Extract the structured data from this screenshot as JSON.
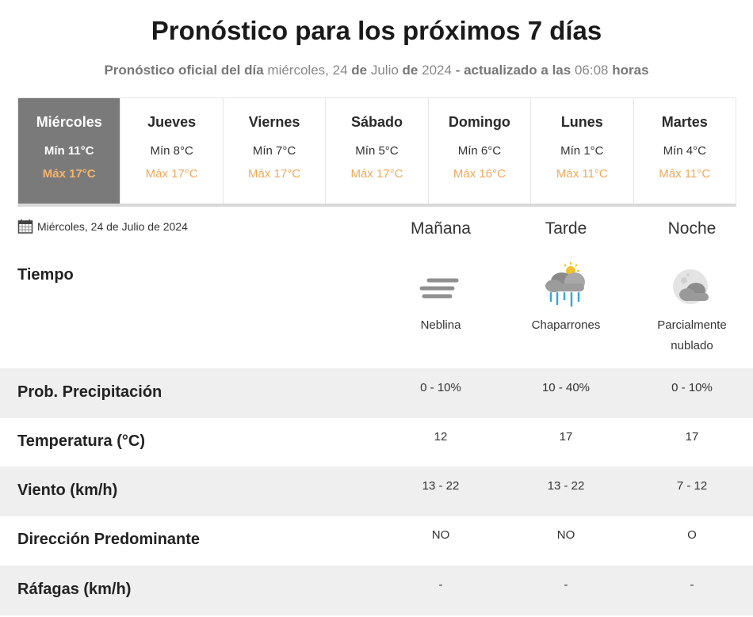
{
  "header": {
    "title": "Pronóstico para los próximos 7 días",
    "subtitle_prefix": "Pronóstico oficial del día",
    "subtitle_weekday": "miércoles,",
    "subtitle_day": "24",
    "subtitle_de1": "de",
    "subtitle_month": "Julio",
    "subtitle_de2": "de",
    "subtitle_year": "2024",
    "subtitle_sep": "-",
    "subtitle_updated": "actualizado a las",
    "subtitle_time": "06:08",
    "subtitle_hours": "horas"
  },
  "days": [
    {
      "name": "Miércoles",
      "min": "Mín 11°C",
      "max": "Máx 17°C",
      "active": true
    },
    {
      "name": "Jueves",
      "min": "Mín 8°C",
      "max": "Máx 17°C",
      "active": false
    },
    {
      "name": "Viernes",
      "min": "Mín 7°C",
      "max": "Máx 17°C",
      "active": false
    },
    {
      "name": "Sábado",
      "min": "Mín 5°C",
      "max": "Máx 17°C",
      "active": false
    },
    {
      "name": "Domingo",
      "min": "Mín 6°C",
      "max": "Máx 16°C",
      "active": false
    },
    {
      "name": "Lunes",
      "min": "Mín 1°C",
      "max": "Máx 11°C",
      "active": false
    },
    {
      "name": "Martes",
      "min": "Mín 4°C",
      "max": "Máx 11°C",
      "active": false
    }
  ],
  "detail": {
    "date": "Miércoles, 24 de Julio de 2024",
    "calendar_icon": "calendar-icon",
    "periods": [
      "Mañana",
      "Tarde",
      "Noche"
    ],
    "tiempo_label": "Tiempo",
    "conditions": [
      {
        "icon": "fog-icon",
        "line1": "Neblina",
        "line2": ""
      },
      {
        "icon": "showers-icon",
        "line1": "Chaparrones",
        "line2": ""
      },
      {
        "icon": "partly-cloudy-night-icon",
        "line1": "Parcialmente",
        "line2": "nublado"
      }
    ],
    "rows": [
      {
        "label": "Prob. Precipitación",
        "values": [
          "0 - 10%",
          "10 - 40%",
          "0 - 10%"
        ]
      },
      {
        "label": "Temperatura (°C)",
        "values": [
          "12",
          "17",
          "17"
        ]
      },
      {
        "label": "Viento (km/h)",
        "values": [
          "13 - 22",
          "13 - 22",
          "7 - 12"
        ]
      },
      {
        "label": "Dirección Predominante",
        "values": [
          "NO",
          "NO",
          "O"
        ]
      },
      {
        "label": "Ráfagas (km/h)",
        "values": [
          "-",
          "-",
          "-"
        ]
      }
    ]
  },
  "colors": {
    "active_day_bg": "#7a7a7a",
    "max_temp": "#f0a85c",
    "row_shade": "#efefef",
    "rain": "#3aa8d8",
    "sun": "#f2c230"
  }
}
